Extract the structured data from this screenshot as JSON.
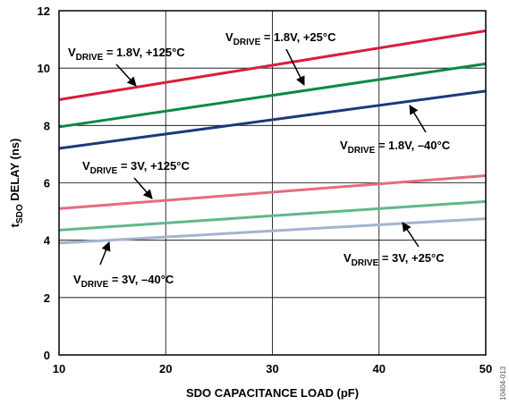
{
  "chart_data": {
    "type": "line",
    "xlabel": "SDO CAPACITANCE LOAD (pF)",
    "ylabel": {
      "main": "t",
      "sub": "SDO",
      "rest": " DELAY (ns)"
    },
    "xlim": [
      10,
      50
    ],
    "ylim": [
      0,
      12
    ],
    "xticks": [
      "10",
      "20",
      "30",
      "40",
      "50"
    ],
    "yticks": [
      "0",
      "2",
      "4",
      "6",
      "8",
      "10",
      "12"
    ],
    "grid": true,
    "figure_id": "10404-013",
    "series": [
      {
        "label_main": "V",
        "label_sub": "DRIVE",
        "label_rest": " = 1.8V, +125°C",
        "color": "#d81e3c",
        "x": [
          10,
          50
        ],
        "y": [
          8.9,
          11.3
        ]
      },
      {
        "label_main": "V",
        "label_sub": "DRIVE",
        "label_rest": " = 1.8V, +25°C",
        "color": "#0a8a45",
        "x": [
          10,
          50
        ],
        "y": [
          7.95,
          10.15
        ]
      },
      {
        "label_main": "V",
        "label_sub": "DRIVE",
        "label_rest": " = 1.8V, –40°C",
        "color": "#1a3a7c",
        "x": [
          10,
          50
        ],
        "y": [
          7.2,
          9.2
        ]
      },
      {
        "label_main": "V",
        "label_sub": "DRIVE",
        "label_rest": " = 3V, +125°C",
        "color": "#e86a7e",
        "x": [
          10,
          50
        ],
        "y": [
          5.1,
          6.25
        ]
      },
      {
        "label_main": "V",
        "label_sub": "DRIVE",
        "label_rest": " = 3V, +25°C",
        "color": "#5fb88a",
        "x": [
          10,
          50
        ],
        "y": [
          4.35,
          5.35
        ]
      },
      {
        "label_main": "V",
        "label_sub": "DRIVE",
        "label_rest": " = 3V, –40°C",
        "color": "#a6b2d0",
        "x": [
          10,
          50
        ],
        "y": [
          3.9,
          4.75
        ]
      }
    ]
  }
}
